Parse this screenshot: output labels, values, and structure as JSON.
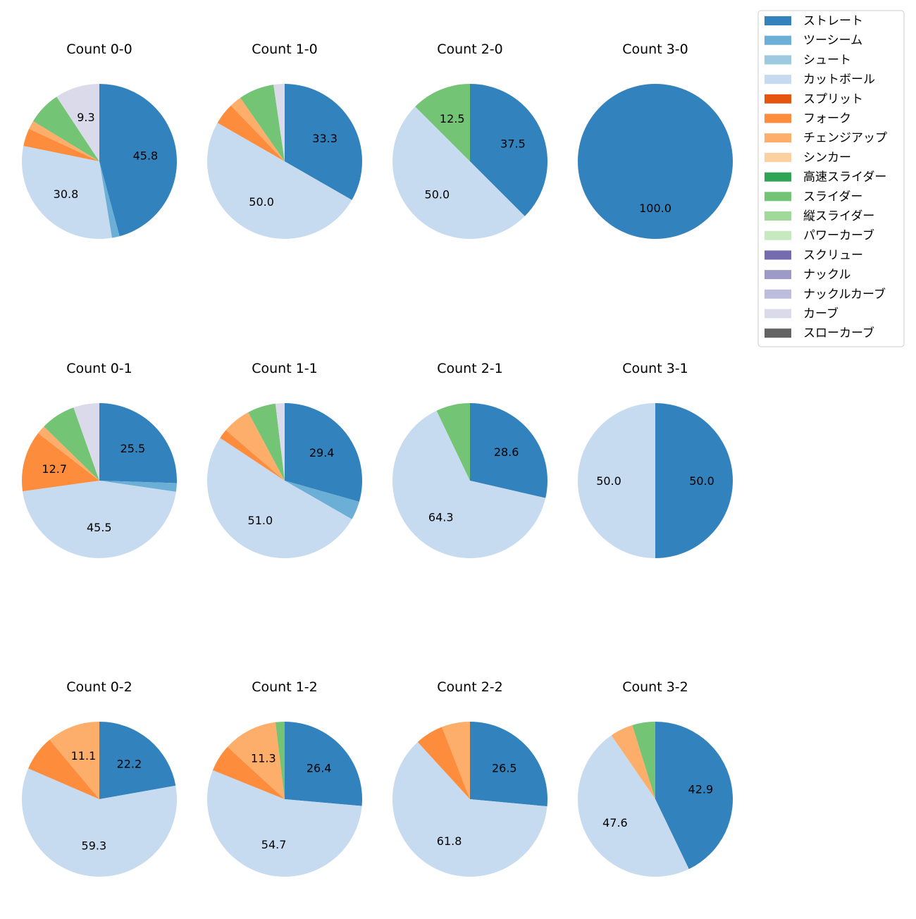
{
  "legend": {
    "entries": [
      {
        "label": "ストレート",
        "color": "#3182bd"
      },
      {
        "label": "ツーシーム",
        "color": "#6baed6"
      },
      {
        "label": "シュート",
        "color": "#9ecae1"
      },
      {
        "label": "カットボール",
        "color": "#c6dbef"
      },
      {
        "label": "スプリット",
        "color": "#e6550d"
      },
      {
        "label": "フォーク",
        "color": "#fd8d3c"
      },
      {
        "label": "チェンジアップ",
        "color": "#fdae6b"
      },
      {
        "label": "シンカー",
        "color": "#fdd0a2"
      },
      {
        "label": "高速スライダー",
        "color": "#31a354"
      },
      {
        "label": "スライダー",
        "color": "#74c476"
      },
      {
        "label": "縦スライダー",
        "color": "#a1d99b"
      },
      {
        "label": "パワーカーブ",
        "color": "#c7e9c0"
      },
      {
        "label": "スクリュー",
        "color": "#756bb1"
      },
      {
        "label": "ナックル",
        "color": "#9e9ac8"
      },
      {
        "label": "ナックルカーブ",
        "color": "#bcbddc"
      },
      {
        "label": "カーブ",
        "color": "#dadaeb"
      },
      {
        "label": "スローカーブ",
        "color": "#636363"
      }
    ],
    "placement": "top-right"
  },
  "chart_data": [
    {
      "type": "pie",
      "title": "Count 0-0",
      "start_angle": 90,
      "direction": "clockwise",
      "slices": [
        {
          "pitch": "ストレート",
          "value": 45.8,
          "label": "45.8"
        },
        {
          "pitch": "ツーシーム",
          "value": 1.6,
          "label": ""
        },
        {
          "pitch": "カットボール",
          "value": 30.8,
          "label": "30.8"
        },
        {
          "pitch": "フォーク",
          "value": 3.7,
          "label": ""
        },
        {
          "pitch": "チェンジアップ",
          "value": 1.8,
          "label": ""
        },
        {
          "pitch": "スライダー",
          "value": 7.0,
          "label": ""
        },
        {
          "pitch": "カーブ",
          "value": 9.3,
          "label": "9.3"
        }
      ]
    },
    {
      "type": "pie",
      "title": "Count 1-0",
      "start_angle": 90,
      "direction": "clockwise",
      "slices": [
        {
          "pitch": "ストレート",
          "value": 33.3,
          "label": "33.3"
        },
        {
          "pitch": "カットボール",
          "value": 50.0,
          "label": "50.0"
        },
        {
          "pitch": "フォーク",
          "value": 4.5,
          "label": ""
        },
        {
          "pitch": "チェンジアップ",
          "value": 2.5,
          "label": ""
        },
        {
          "pitch": "スライダー",
          "value": 7.4,
          "label": ""
        },
        {
          "pitch": "カーブ",
          "value": 2.3,
          "label": ""
        }
      ]
    },
    {
      "type": "pie",
      "title": "Count 2-0",
      "start_angle": 90,
      "direction": "clockwise",
      "slices": [
        {
          "pitch": "ストレート",
          "value": 37.5,
          "label": "37.5"
        },
        {
          "pitch": "カットボール",
          "value": 50.0,
          "label": "50.0"
        },
        {
          "pitch": "スライダー",
          "value": 12.5,
          "label": "12.5"
        }
      ]
    },
    {
      "type": "pie",
      "title": "Count 3-0",
      "start_angle": 90,
      "direction": "clockwise",
      "slices": [
        {
          "pitch": "ストレート",
          "value": 100.0,
          "label": "100.0"
        }
      ]
    },
    {
      "type": "pie",
      "title": "Count 0-1",
      "start_angle": 90,
      "direction": "clockwise",
      "slices": [
        {
          "pitch": "ストレート",
          "value": 25.5,
          "label": "25.5"
        },
        {
          "pitch": "ツーシーム",
          "value": 1.8,
          "label": ""
        },
        {
          "pitch": "カットボール",
          "value": 45.5,
          "label": "45.5"
        },
        {
          "pitch": "フォーク",
          "value": 12.7,
          "label": "12.7"
        },
        {
          "pitch": "チェンジアップ",
          "value": 1.8,
          "label": ""
        },
        {
          "pitch": "スライダー",
          "value": 7.3,
          "label": ""
        },
        {
          "pitch": "カーブ",
          "value": 5.4,
          "label": ""
        }
      ]
    },
    {
      "type": "pie",
      "title": "Count 1-1",
      "start_angle": 90,
      "direction": "clockwise",
      "slices": [
        {
          "pitch": "ストレート",
          "value": 29.4,
          "label": "29.4"
        },
        {
          "pitch": "ツーシーム",
          "value": 3.9,
          "label": ""
        },
        {
          "pitch": "カットボール",
          "value": 51.0,
          "label": "51.0"
        },
        {
          "pitch": "フォーク",
          "value": 2.0,
          "label": ""
        },
        {
          "pitch": "チェンジアップ",
          "value": 5.9,
          "label": ""
        },
        {
          "pitch": "スライダー",
          "value": 5.9,
          "label": ""
        },
        {
          "pitch": "カーブ",
          "value": 1.9,
          "label": ""
        }
      ]
    },
    {
      "type": "pie",
      "title": "Count 2-1",
      "start_angle": 90,
      "direction": "clockwise",
      "slices": [
        {
          "pitch": "ストレート",
          "value": 28.6,
          "label": "28.6"
        },
        {
          "pitch": "カットボール",
          "value": 64.3,
          "label": "64.3"
        },
        {
          "pitch": "スライダー",
          "value": 7.1,
          "label": ""
        }
      ]
    },
    {
      "type": "pie",
      "title": "Count 3-1",
      "start_angle": 90,
      "direction": "clockwise",
      "slices": [
        {
          "pitch": "ストレート",
          "value": 50.0,
          "label": "50.0"
        },
        {
          "pitch": "カットボール",
          "value": 50.0,
          "label": "50.0"
        }
      ]
    },
    {
      "type": "pie",
      "title": "Count 0-2",
      "start_angle": 90,
      "direction": "clockwise",
      "slices": [
        {
          "pitch": "ストレート",
          "value": 22.2,
          "label": "22.2"
        },
        {
          "pitch": "カットボール",
          "value": 59.3,
          "label": "59.3"
        },
        {
          "pitch": "フォーク",
          "value": 7.4,
          "label": ""
        },
        {
          "pitch": "チェンジアップ",
          "value": 11.1,
          "label": "11.1"
        }
      ]
    },
    {
      "type": "pie",
      "title": "Count 1-2",
      "start_angle": 90,
      "direction": "clockwise",
      "slices": [
        {
          "pitch": "ストレート",
          "value": 26.4,
          "label": "26.4"
        },
        {
          "pitch": "カットボール",
          "value": 54.7,
          "label": "54.7"
        },
        {
          "pitch": "フォーク",
          "value": 5.7,
          "label": ""
        },
        {
          "pitch": "チェンジアップ",
          "value": 11.3,
          "label": "11.3"
        },
        {
          "pitch": "スライダー",
          "value": 1.9,
          "label": ""
        }
      ]
    },
    {
      "type": "pie",
      "title": "Count 2-2",
      "start_angle": 90,
      "direction": "clockwise",
      "slices": [
        {
          "pitch": "ストレート",
          "value": 26.5,
          "label": "26.5"
        },
        {
          "pitch": "カットボール",
          "value": 61.8,
          "label": "61.8"
        },
        {
          "pitch": "フォーク",
          "value": 5.9,
          "label": ""
        },
        {
          "pitch": "チェンジアップ",
          "value": 5.9,
          "label": ""
        }
      ]
    },
    {
      "type": "pie",
      "title": "Count 3-2",
      "start_angle": 90,
      "direction": "clockwise",
      "slices": [
        {
          "pitch": "ストレート",
          "value": 42.9,
          "label": "42.9"
        },
        {
          "pitch": "カットボール",
          "value": 47.6,
          "label": "47.6"
        },
        {
          "pitch": "チェンジアップ",
          "value": 4.8,
          "label": ""
        },
        {
          "pitch": "スライダー",
          "value": 4.8,
          "label": ""
        }
      ]
    }
  ]
}
